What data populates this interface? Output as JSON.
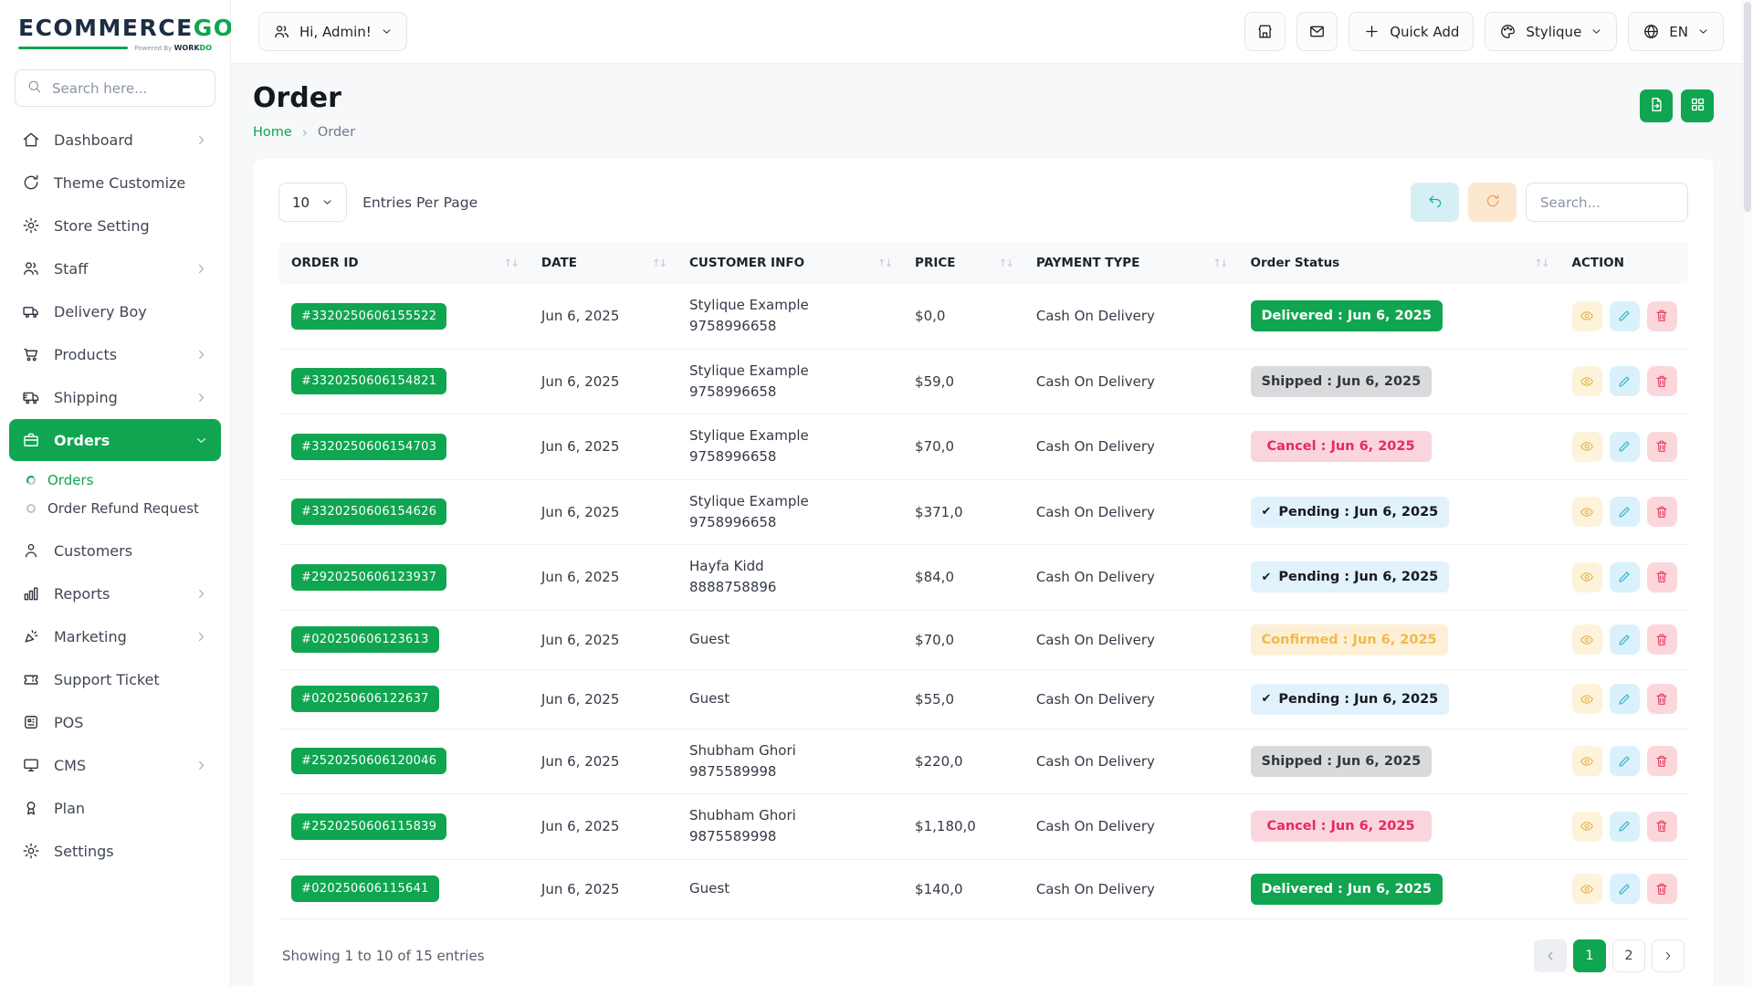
{
  "brand": {
    "name": "ECOMMERCE",
    "accent": "GO",
    "powered_prefix": "Powered By",
    "powered_word": "WORK",
    "powered_accent": "DO"
  },
  "sidebar": {
    "search_placeholder": "Search here...",
    "items": [
      {
        "label": "Dashboard",
        "icon": "house",
        "chevron": "right"
      },
      {
        "label": "Theme Customize",
        "icon": "theme"
      },
      {
        "label": "Store Setting",
        "icon": "gear"
      },
      {
        "label": "Staff",
        "icon": "users",
        "chevron": "right"
      },
      {
        "label": "Delivery Boy",
        "icon": "truck"
      },
      {
        "label": "Products",
        "icon": "cart",
        "chevron": "right"
      },
      {
        "label": "Shipping",
        "icon": "shipping",
        "chevron": "right"
      },
      {
        "label": "Orders",
        "icon": "briefcase",
        "chevron": "down",
        "active": true,
        "children": [
          {
            "label": "Orders",
            "active": true
          },
          {
            "label": "Order Refund Request",
            "active": false
          }
        ]
      },
      {
        "label": "Customers",
        "icon": "person"
      },
      {
        "label": "Reports",
        "icon": "bar-chart",
        "chevron": "right"
      },
      {
        "label": "Marketing",
        "icon": "megaphone",
        "chevron": "right"
      },
      {
        "label": "Support Ticket",
        "icon": "ticket"
      },
      {
        "label": "POS",
        "icon": "pos"
      },
      {
        "label": "CMS",
        "icon": "monitor",
        "chevron": "right"
      },
      {
        "label": "Plan",
        "icon": "award"
      },
      {
        "label": "Settings",
        "icon": "gear"
      }
    ]
  },
  "topbar": {
    "user_label": "Hi, Admin!",
    "quick_add_label": "Quick Add",
    "theme_label": "Stylique",
    "language_label": "EN"
  },
  "page": {
    "title": "Order",
    "breadcrumb_home": "Home",
    "breadcrumb_current": "Order"
  },
  "controls": {
    "entries_value": "10",
    "entries_label": "Entries Per Page",
    "search_placeholder": "Search..."
  },
  "table": {
    "columns": [
      {
        "label": "ORDER ID",
        "sortable": true
      },
      {
        "label": "DATE",
        "sortable": true
      },
      {
        "label": "CUSTOMER INFO",
        "sortable": true
      },
      {
        "label": "PRICE",
        "sortable": true
      },
      {
        "label": "PAYMENT TYPE",
        "sortable": true
      },
      {
        "label": "Order Status",
        "sortable": true
      },
      {
        "label": "ACTION",
        "sortable": false
      }
    ],
    "rows": [
      {
        "order_id": "#3320250606155522",
        "date": "Jun 6, 2025",
        "customer": "Stylique Example",
        "phone": "9758996658",
        "price": "$0,0",
        "payment": "Cash On Delivery",
        "status": "Delivered : Jun 6, 2025",
        "status_type": "delivered"
      },
      {
        "order_id": "#3320250606154821",
        "date": "Jun 6, 2025",
        "customer": "Stylique Example",
        "phone": "9758996658",
        "price": "$59,0",
        "payment": "Cash On Delivery",
        "status": "Shipped : Jun 6, 2025",
        "status_type": "shipped"
      },
      {
        "order_id": "#3320250606154703",
        "date": "Jun 6, 2025",
        "customer": "Stylique Example",
        "phone": "9758996658",
        "price": "$70,0",
        "payment": "Cash On Delivery",
        "status": "Cancel : Jun 6, 2025",
        "status_type": "cancel"
      },
      {
        "order_id": "#3320250606154626",
        "date": "Jun 6, 2025",
        "customer": "Stylique Example",
        "phone": "9758996658",
        "price": "$371,0",
        "payment": "Cash On Delivery",
        "status": "Pending : Jun 6, 2025",
        "status_type": "pending"
      },
      {
        "order_id": "#2920250606123937",
        "date": "Jun 6, 2025",
        "customer": "Hayfa Kidd",
        "phone": "8888758896",
        "price": "$84,0",
        "payment": "Cash On Delivery",
        "status": "Pending : Jun 6, 2025",
        "status_type": "pending"
      },
      {
        "order_id": "#020250606123613",
        "date": "Jun 6, 2025",
        "customer": "Guest",
        "phone": "",
        "price": "$70,0",
        "payment": "Cash On Delivery",
        "status": "Confirmed : Jun 6, 2025",
        "status_type": "confirmed"
      },
      {
        "order_id": "#020250606122637",
        "date": "Jun 6, 2025",
        "customer": "Guest",
        "phone": "",
        "price": "$55,0",
        "payment": "Cash On Delivery",
        "status": "Pending : Jun 6, 2025",
        "status_type": "pending"
      },
      {
        "order_id": "#2520250606120046",
        "date": "Jun 6, 2025",
        "customer": "Shubham Ghori",
        "phone": "9875589998",
        "price": "$220,0",
        "payment": "Cash On Delivery",
        "status": "Shipped : Jun 6, 2025",
        "status_type": "shipped"
      },
      {
        "order_id": "#2520250606115839",
        "date": "Jun 6, 2025",
        "customer": "Shubham Ghori",
        "phone": "9875589998",
        "price": "$1,180,0",
        "payment": "Cash On Delivery",
        "status": "Cancel : Jun 6, 2025",
        "status_type": "cancel"
      },
      {
        "order_id": "#020250606115641",
        "date": "Jun 6, 2025",
        "customer": "Guest",
        "phone": "",
        "price": "$140,0",
        "payment": "Cash On Delivery",
        "status": "Delivered : Jun 6, 2025",
        "status_type": "delivered"
      }
    ]
  },
  "footer": {
    "showing": "Showing 1 to 10 of 15 entries",
    "pages": [
      "1",
      "2"
    ],
    "active_page": "1"
  },
  "colors": {
    "primary_green": "#10a550",
    "delivered_bg": "#10a550",
    "delivered_text": "#ffffff",
    "shipped_bg": "#d9dadc",
    "shipped_text": "#32373f",
    "cancel_bg": "#fbd5dd",
    "cancel_text": "#e8295c",
    "pending_bg": "#e1f2fc",
    "pending_text": "#16191f",
    "confirmed_bg": "#fdf0d6",
    "confirmed_text": "#f3b84a",
    "undo_btn_bg": "#d5f0f4",
    "refresh_btn_bg": "#fce8d1",
    "view_btn_bg": "#fdf3da",
    "edit_btn_bg": "#d9f1fb",
    "delete_btn_bg": "#fbd7dc"
  }
}
